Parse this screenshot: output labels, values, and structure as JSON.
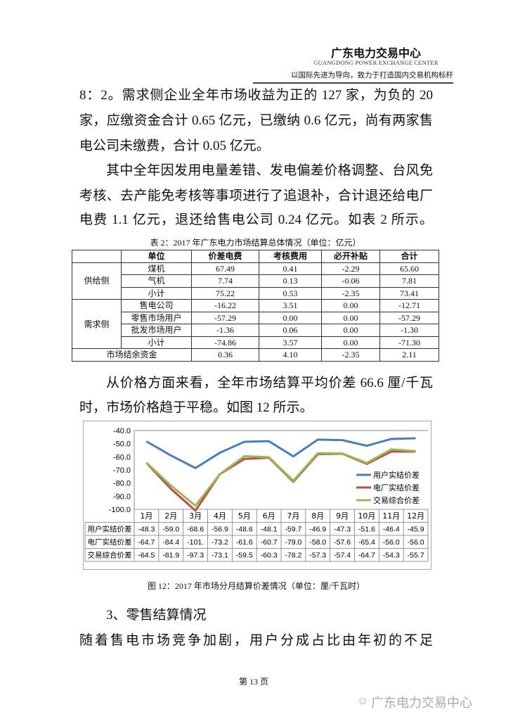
{
  "header": {
    "title": "广东电力交易中心",
    "subtitle": "GUANGDONG POWER EXCHANGE CENTER",
    "slogan": "以国际先进为导向，致力于打造国内交易机构标杆"
  },
  "body_lines_1": [
    "8：2。需求侧企业全年市场收益为正的 127 家，为负的 20",
    "家，应缴资金合计 0.65 亿元，已缴纳 0.6 亿元，尚有两家售",
    "电公司未缴费，合计 0.05 亿元。",
    "其中全年因发用电量差错、发电偏差价格调整、台风免",
    "考核、去产能免考核等事项进行了追退补，合计退还给电厂",
    "电费 1.1 亿元，退还给售电公司 0.24 亿元。如表 2 所示。"
  ],
  "table2": {
    "caption": "表 2：2017 年广东电力市场结算总体情况（单位：亿元）",
    "headers": [
      "",
      "单位",
      "价差电费",
      "考核费用",
      "必开补贴",
      "合计"
    ],
    "groups": {
      "supply": "供给侧",
      "demand": "需求侧"
    },
    "rows": [
      [
        "煤机",
        "67.49",
        "0.41",
        "-2.29",
        "65.60"
      ],
      [
        "气机",
        "7.74",
        "0.13",
        "-0.06",
        "7.81"
      ],
      [
        "小计",
        "75.22",
        "0.53",
        "-2.35",
        "73.41"
      ],
      [
        "售电公司",
        "-16.22",
        "3.51",
        "0.00",
        "-12.71"
      ],
      [
        "零售市场用户",
        "-57.29",
        "0.00",
        "0.00",
        "-57.29"
      ],
      [
        "批发市场用户",
        "-1.36",
        "0.06",
        "0.00",
        "-1.30"
      ],
      [
        "小计",
        "-74.86",
        "3.57",
        "0.00",
        "-71.30"
      ]
    ],
    "total": [
      "市场结余资金",
      "0.36",
      "4.10",
      "-2.35",
      "2.11"
    ]
  },
  "body_lines_2": [
    "从价格方面来看，全年市场结算平均价差 66.6 厘/千瓦",
    "时，市场价格趋于平稳。如图 12 所示。"
  ],
  "chart_data": {
    "type": "line",
    "categories": [
      "1月",
      "2月",
      "3月",
      "4月",
      "5月",
      "6月",
      "7月",
      "8月",
      "9月",
      "10月",
      "11月",
      "12月"
    ],
    "ylim": [
      -100,
      -40
    ],
    "yticks": [
      "-40.0",
      "-50.0",
      "-60.0",
      "-70.0",
      "-80.0",
      "-90.0",
      "-100.0"
    ],
    "grid": false,
    "legend": "right",
    "data_table": true,
    "series": [
      {
        "name": "用户实结价差",
        "color": "#4a7ebb",
        "values": [
          -48.3,
          -59.0,
          -68.6,
          -56.9,
          -48.6,
          -48.1,
          -59.7,
          -46.9,
          -47.3,
          -51.6,
          -46.4,
          -45.9
        ]
      },
      {
        "name": "电厂实结价差",
        "color": "#be4b48",
        "values": [
          -64.7,
          -84.4,
          -101.0,
          -73.2,
          -61.6,
          -60.7,
          -79.0,
          -58.0,
          -57.6,
          -65.4,
          -56.0,
          -56.0
        ]
      },
      {
        "name": "交易综合价差",
        "color": "#98b954",
        "values": [
          -64.5,
          -81.9,
          -97.3,
          -73.1,
          -59.5,
          -60.3,
          -78.2,
          -57.3,
          -57.4,
          -64.7,
          -54.3,
          -55.7
        ]
      }
    ]
  },
  "figure_caption": "图 12：2017 年市场分月结算价差情况（单位：厘/千瓦时）",
  "section_heading": "3、零售结算情况",
  "body_lines_3": [
    "随着售电市场竞争加剧，用户分成占比由年初的不足"
  ],
  "footer": {
    "page": "第 13 页",
    "watermark": "广东电力交易中心"
  }
}
